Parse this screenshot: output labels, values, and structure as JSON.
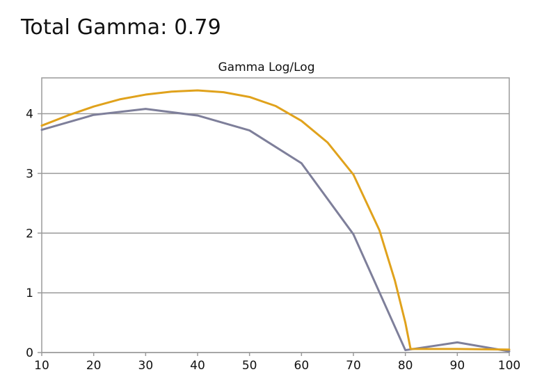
{
  "page": {
    "heading": "Total Gamma: 0.79"
  },
  "chart_data": {
    "type": "line",
    "title": "Gamma Log/Log",
    "xlabel": "",
    "ylabel": "",
    "xlim": [
      10,
      100
    ],
    "ylim": [
      0,
      4.6
    ],
    "x_ticks": [
      "10",
      "20",
      "30",
      "40",
      "50",
      "60",
      "70",
      "80",
      "90",
      "100"
    ],
    "y_ticks": [
      "0",
      "1",
      "2",
      "3",
      "4"
    ],
    "grid": true,
    "legend": "none",
    "series": [
      {
        "color": "#7e7f9a",
        "x": [
          10,
          20,
          30,
          40,
          50,
          60,
          70,
          80,
          90,
          100
        ],
        "values": [
          3.73,
          3.98,
          4.08,
          3.97,
          3.72,
          3.17,
          1.98,
          0.04,
          0.17,
          0.02
        ]
      },
      {
        "color": "#e0a21c",
        "x": [
          10,
          15,
          20,
          25,
          30,
          35,
          40,
          45,
          50,
          55,
          60,
          65,
          70,
          75,
          78,
          80,
          81,
          90,
          100
        ],
        "values": [
          3.8,
          3.97,
          4.12,
          4.24,
          4.32,
          4.37,
          4.39,
          4.36,
          4.28,
          4.13,
          3.88,
          3.52,
          2.98,
          2.05,
          1.2,
          0.5,
          0.06,
          0.06,
          0.05
        ]
      }
    ]
  }
}
